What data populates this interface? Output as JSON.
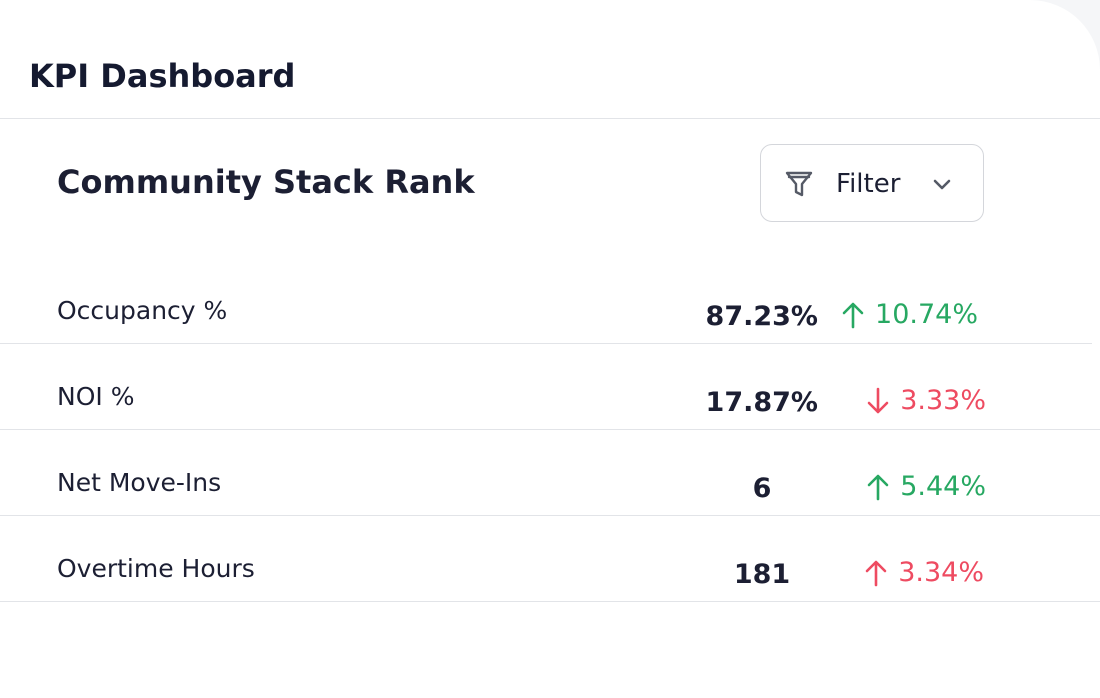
{
  "header": {
    "title": "KPI Dashboard"
  },
  "section": {
    "title": "Community Stack Rank",
    "filter_label": "Filter"
  },
  "kpis": [
    {
      "metric": "Occupancy %",
      "value": "87.23%",
      "change": "10.74%",
      "direction": "up",
      "color": "#27a862"
    },
    {
      "metric": "NOI %",
      "value": "17.87%",
      "change": "3.33%",
      "direction": "down",
      "color": "#ee4b61"
    },
    {
      "metric": "Net Move-Ins",
      "value": "6",
      "change": "5.44%",
      "direction": "up",
      "color": "#27a862"
    },
    {
      "metric": "Overtime Hours",
      "value": "181",
      "change": "3.34%",
      "direction": "up",
      "color": "#ee4b61"
    }
  ],
  "icons": {
    "filter": "funnel-icon",
    "dropdown": "chevron-down-icon",
    "trend_up": "arrow-up-icon",
    "trend_down": "arrow-down-icon"
  }
}
